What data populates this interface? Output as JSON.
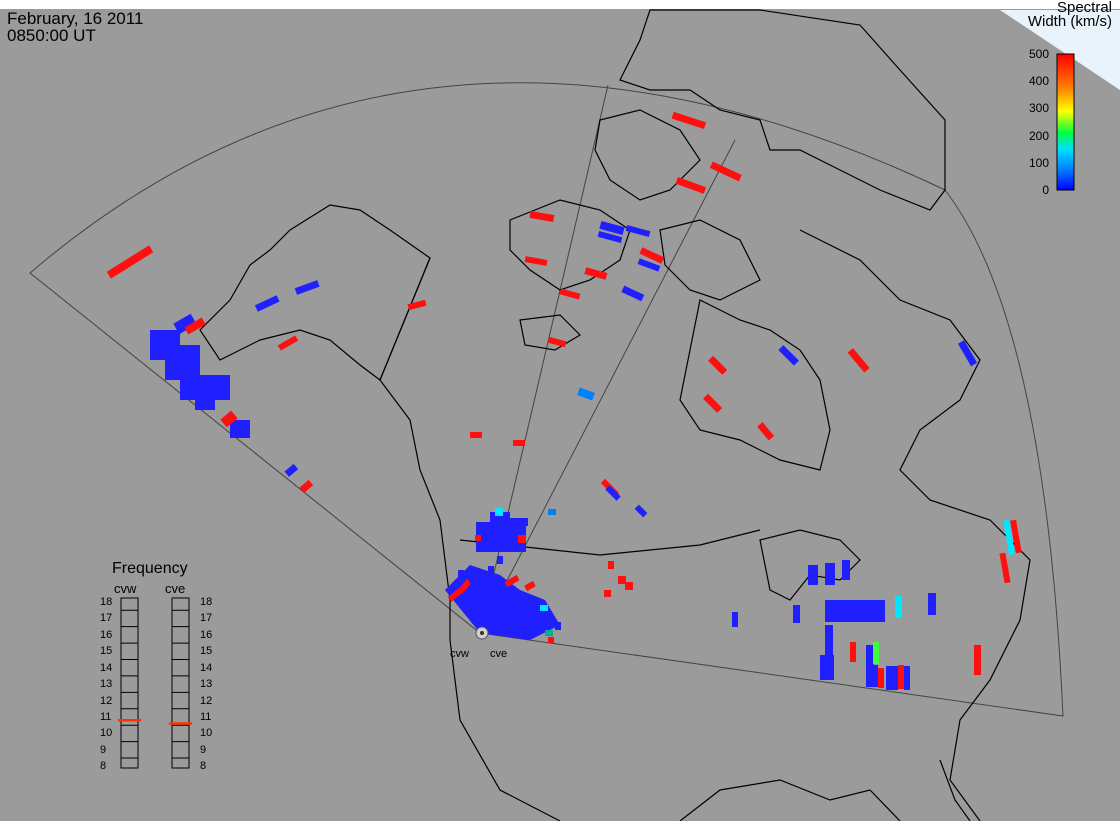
{
  "header": {
    "date": "February, 16 2011",
    "time": "0850:00 UT"
  },
  "colorbar": {
    "title_line1": "Spectral",
    "title_line2": "Width (km/s)",
    "ticks": [
      "500",
      "400",
      "300",
      "200",
      "100",
      "0"
    ],
    "min": 0,
    "max": 500,
    "gradient": [
      "#0000ff",
      "#0080ff",
      "#00e0ff",
      "#00ff40",
      "#ffff00",
      "#ff8000",
      "#ff0000"
    ]
  },
  "frequency_panel": {
    "title": "Frequency",
    "radars": [
      {
        "name": "cvw",
        "frequency": 10.8
      },
      {
        "name": "cve",
        "frequency": 10.6
      }
    ],
    "scale": [
      "18",
      "17",
      "16",
      "15",
      "14",
      "13",
      "12",
      "11",
      "10",
      "9",
      "8"
    ],
    "indicator_color": "#ff3000"
  },
  "radars": [
    {
      "name": "cvw",
      "label": "cvw"
    },
    {
      "name": "cve",
      "label": "cve"
    }
  ],
  "colors": {
    "background": "#9b9b9b",
    "coastline": "#000000",
    "fov_outline": "#333333",
    "low_width": "#2020ff",
    "high_width": "#ff1010",
    "mid_width": "#00e8ff"
  }
}
